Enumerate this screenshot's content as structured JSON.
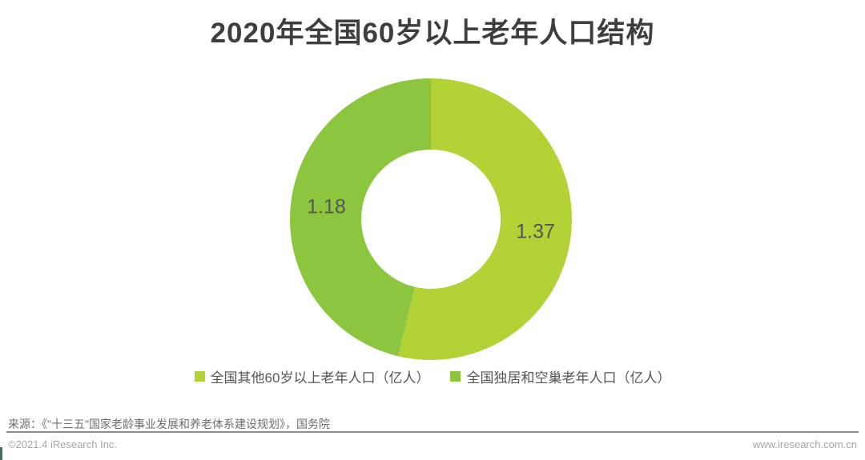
{
  "title": "2020年全国60岁以上老年人口结构",
  "chart_data": {
    "type": "pie",
    "subtype": "donut",
    "title": "2020年全国60岁以上老年人口结构",
    "unit": "亿人",
    "start_angle_deg": 0,
    "direction": "clockwise",
    "inner_radius_ratio": 0.49,
    "total": 2.55,
    "legend_position": "bottom",
    "series": [
      {
        "name": "全国其他60岁以上老年人口（亿人）",
        "value": 1.37,
        "label": "1.37",
        "color": "#b2d235"
      },
      {
        "name": "全国独居和空巢老年人口（亿人）",
        "value": 1.18,
        "label": "1.18",
        "color": "#8bc63e"
      }
    ]
  },
  "source_note": "来源：《\"十三五\"国家老龄事业发展和养老体系建设规划》，国务院",
  "footer": {
    "left": "©2021.4 iResearch Inc.",
    "right": "www.iresearch.com.cn"
  },
  "colors": {
    "title_color": "#3e3e3e",
    "label_color": "#565656",
    "source_gray": "#6e6e6e",
    "divider_gray": "#8e8e8e",
    "muted_gray": "#a6a6a6",
    "accent_light_green": "#b2d235",
    "accent_green": "#8bc63e"
  }
}
